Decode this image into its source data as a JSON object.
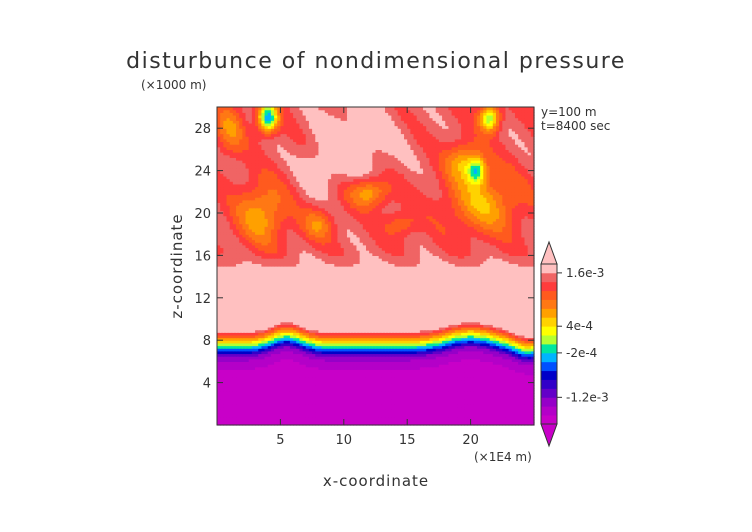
{
  "chart_data": {
    "type": "heatmap",
    "title": "disturbunce of nondimensional pressure",
    "z_unit": "(×1000 m)",
    "x_unit": "(×1E4 m)",
    "xlabel": "x-coordinate",
    "ylabel": "z-coordinate",
    "annotations": [
      "y=100 m",
      "t=8400 sec"
    ],
    "xlim": [
      0,
      25
    ],
    "ylim": [
      0,
      30
    ],
    "x_ticks": [
      5,
      10,
      15,
      20
    ],
    "y_ticks": [
      4,
      8,
      12,
      16,
      20,
      24,
      28
    ],
    "colorbar_labels": [
      {
        "text": "1.6e-3",
        "value": 0.0016
      },
      {
        "text": "4e-4",
        "value": 0.0004
      },
      {
        "text": "-2e-4",
        "value": -0.0002
      },
      {
        "text": "-1.2e-3",
        "value": -0.0012
      }
    ],
    "colorbar_levels": [
      -0.0016,
      -0.0014,
      -0.0012,
      -0.001,
      -0.0008,
      -0.0006,
      -0.0004,
      -0.0002,
      0,
      0.0002,
      0.0004,
      0.0006,
      0.0008,
      0.001,
      0.0012,
      0.0014,
      0.0016
    ],
    "colorbar_colors": [
      "#c800c8",
      "#b400c8",
      "#9600c8",
      "#6400c8",
      "#3200c8",
      "#0000c8",
      "#0050ff",
      "#00b4ff",
      "#00e6a0",
      "#b4ff32",
      "#ffff00",
      "#ffd200",
      "#ffa000",
      "#ff7814",
      "#ff5a1e",
      "#ff3c3c",
      "#f06464",
      "#ffc0c0"
    ],
    "fields": {
      "lower_region": "strong negative values below z≈6 (magenta/purple), steep gradient z≈6–9",
      "middle_region": "near-max positive values z≈9–15 (light pink)",
      "upper_region": "mixed positive values z≈15–30 with orange/yellow cells and a few blue spots near x≈4, 20, 21"
    }
  }
}
